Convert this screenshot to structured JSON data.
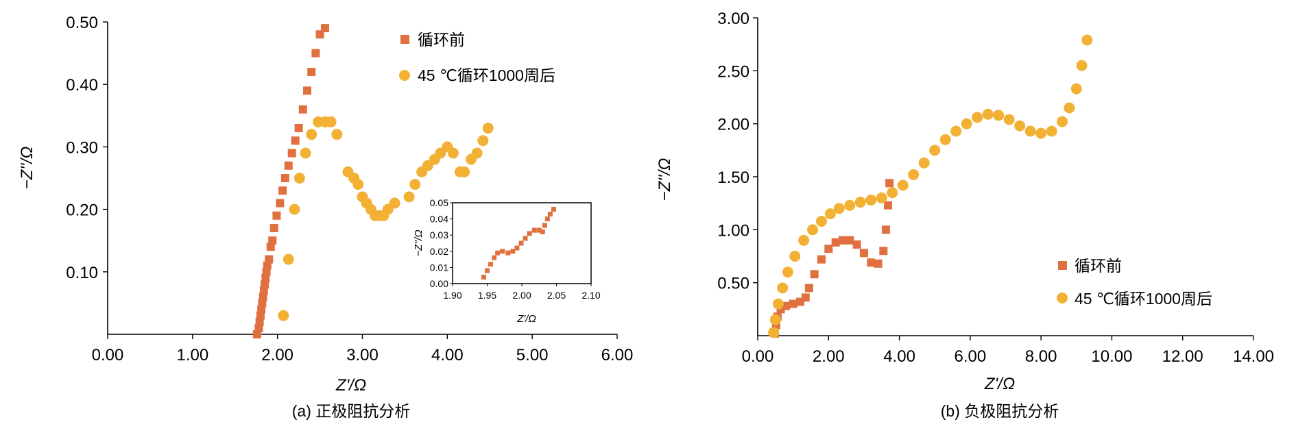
{
  "colors": {
    "before": "#E07040",
    "after": "#F2B134",
    "axis": "#000000"
  },
  "chart_data": [
    {
      "type": "scatter",
      "caption": "(a) 正极阻抗分析",
      "xlabel": "Z'/Ω",
      "ylabel": "−Z''/Ω",
      "xlim": [
        0,
        6
      ],
      "ylim": [
        0,
        0.5
      ],
      "xticks": [
        "0.00",
        "1.00",
        "2.00",
        "3.00",
        "4.00",
        "5.00",
        "6.00"
      ],
      "yticks": [
        "0.10",
        "0.20",
        "0.30",
        "0.40",
        "0.50"
      ],
      "legend_position": "top-right",
      "series": [
        {
          "name": "循环前",
          "marker": "square",
          "color": "#E07040",
          "points": [
            [
              1.76,
              0.0
            ],
            [
              1.78,
              0.01
            ],
            [
              1.79,
              0.02
            ],
            [
              1.8,
              0.03
            ],
            [
              1.81,
              0.04
            ],
            [
              1.82,
              0.05
            ],
            [
              1.83,
              0.06
            ],
            [
              1.84,
              0.07
            ],
            [
              1.85,
              0.08
            ],
            [
              1.86,
              0.09
            ],
            [
              1.87,
              0.1
            ],
            [
              1.88,
              0.11
            ],
            [
              1.9,
              0.12
            ],
            [
              1.92,
              0.14
            ],
            [
              1.94,
              0.15
            ],
            [
              1.96,
              0.17
            ],
            [
              1.99,
              0.19
            ],
            [
              2.03,
              0.21
            ],
            [
              2.06,
              0.23
            ],
            [
              2.09,
              0.25
            ],
            [
              2.13,
              0.27
            ],
            [
              2.17,
              0.29
            ],
            [
              2.21,
              0.31
            ],
            [
              2.25,
              0.33
            ],
            [
              2.3,
              0.36
            ],
            [
              2.35,
              0.39
            ],
            [
              2.4,
              0.42
            ],
            [
              2.45,
              0.45
            ],
            [
              2.5,
              0.48
            ],
            [
              2.56,
              0.49
            ]
          ]
        },
        {
          "name": "45 ℃循环1000周后",
          "marker": "circle",
          "color": "#F2B134",
          "points": [
            [
              2.07,
              0.03
            ],
            [
              2.13,
              0.12
            ],
            [
              2.2,
              0.2
            ],
            [
              2.26,
              0.25
            ],
            [
              2.33,
              0.29
            ],
            [
              2.4,
              0.32
            ],
            [
              2.48,
              0.34
            ],
            [
              2.56,
              0.34
            ],
            [
              2.63,
              0.34
            ],
            [
              2.7,
              0.32
            ],
            [
              2.83,
              0.26
            ],
            [
              2.9,
              0.25
            ],
            [
              2.95,
              0.24
            ],
            [
              3.0,
              0.22
            ],
            [
              3.05,
              0.21
            ],
            [
              3.1,
              0.2
            ],
            [
              3.15,
              0.19
            ],
            [
              3.2,
              0.19
            ],
            [
              3.25,
              0.19
            ],
            [
              3.3,
              0.2
            ],
            [
              3.38,
              0.21
            ],
            [
              3.55,
              0.22
            ],
            [
              3.62,
              0.24
            ],
            [
              3.7,
              0.26
            ],
            [
              3.77,
              0.27
            ],
            [
              3.85,
              0.28
            ],
            [
              3.92,
              0.29
            ],
            [
              4.0,
              0.3
            ],
            [
              4.07,
              0.29
            ],
            [
              4.15,
              0.26
            ],
            [
              4.2,
              0.26
            ],
            [
              4.28,
              0.28
            ],
            [
              4.35,
              0.29
            ],
            [
              4.42,
              0.31
            ],
            [
              4.48,
              0.33
            ]
          ]
        }
      ],
      "inset": {
        "type": "scatter",
        "xlabel": "Z'/Ω",
        "ylabel": "−Z''/Ω",
        "xlim": [
          1.9,
          2.1
        ],
        "ylim": [
          0,
          0.05
        ],
        "xticks": [
          "1.90",
          "1.95",
          "2.00",
          "2.05",
          "2.10"
        ],
        "yticks": [
          "0.00",
          "0.01",
          "0.02",
          "0.03",
          "0.04",
          "0.05"
        ],
        "points": [
          [
            1.945,
            0.004
          ],
          [
            1.95,
            0.008
          ],
          [
            1.955,
            0.012
          ],
          [
            1.96,
            0.016
          ],
          [
            1.965,
            0.019
          ],
          [
            1.972,
            0.02
          ],
          [
            1.98,
            0.019
          ],
          [
            1.987,
            0.02
          ],
          [
            1.993,
            0.022
          ],
          [
            1.999,
            0.025
          ],
          [
            2.005,
            0.028
          ],
          [
            2.011,
            0.031
          ],
          [
            2.018,
            0.033
          ],
          [
            2.025,
            0.033
          ],
          [
            2.03,
            0.032
          ],
          [
            2.033,
            0.036
          ],
          [
            2.037,
            0.04
          ],
          [
            2.041,
            0.043
          ],
          [
            2.046,
            0.046
          ]
        ]
      }
    },
    {
      "type": "scatter",
      "caption": "(b) 负极阻抗分析",
      "xlabel": "Z'/Ω",
      "ylabel": "−Z''/Ω",
      "xlim": [
        0,
        14
      ],
      "ylim": [
        0,
        3
      ],
      "xticks": [
        "0.00",
        "2.00",
        "4.00",
        "6.00",
        "8.00",
        "10.00",
        "12.00",
        "14.00"
      ],
      "yticks": [
        "0.50",
        "1.00",
        "1.50",
        "2.00",
        "2.50",
        "3.00"
      ],
      "legend_position": "bottom-right",
      "series": [
        {
          "name": "循环前",
          "marker": "square",
          "color": "#E07040",
          "points": [
            [
              0.48,
              0.02
            ],
            [
              0.52,
              0.1
            ],
            [
              0.56,
              0.18
            ],
            [
              0.65,
              0.25
            ],
            [
              0.8,
              0.28
            ],
            [
              1.0,
              0.3
            ],
            [
              1.2,
              0.32
            ],
            [
              1.35,
              0.36
            ],
            [
              1.45,
              0.45
            ],
            [
              1.6,
              0.58
            ],
            [
              1.8,
              0.72
            ],
            [
              2.0,
              0.82
            ],
            [
              2.2,
              0.88
            ],
            [
              2.4,
              0.9
            ],
            [
              2.6,
              0.9
            ],
            [
              2.8,
              0.86
            ],
            [
              3.0,
              0.78
            ],
            [
              3.2,
              0.69
            ],
            [
              3.4,
              0.68
            ],
            [
              3.55,
              0.8
            ],
            [
              3.62,
              1.0
            ],
            [
              3.68,
              1.23
            ],
            [
              3.72,
              1.44
            ]
          ]
        },
        {
          "name": "45 ℃循环1000周后",
          "marker": "circle",
          "color": "#F2B134",
          "points": [
            [
              0.45,
              0.03
            ],
            [
              0.5,
              0.15
            ],
            [
              0.58,
              0.3
            ],
            [
              0.7,
              0.45
            ],
            [
              0.85,
              0.6
            ],
            [
              1.05,
              0.75
            ],
            [
              1.3,
              0.9
            ],
            [
              1.55,
              1.0
            ],
            [
              1.8,
              1.08
            ],
            [
              2.05,
              1.15
            ],
            [
              2.3,
              1.2
            ],
            [
              2.6,
              1.23
            ],
            [
              2.9,
              1.26
            ],
            [
              3.2,
              1.28
            ],
            [
              3.5,
              1.3
            ],
            [
              3.8,
              1.35
            ],
            [
              4.1,
              1.42
            ],
            [
              4.4,
              1.52
            ],
            [
              4.7,
              1.63
            ],
            [
              5.0,
              1.75
            ],
            [
              5.3,
              1.85
            ],
            [
              5.6,
              1.93
            ],
            [
              5.9,
              2.0
            ],
            [
              6.2,
              2.06
            ],
            [
              6.5,
              2.09
            ],
            [
              6.8,
              2.08
            ],
            [
              7.1,
              2.04
            ],
            [
              7.4,
              1.98
            ],
            [
              7.7,
              1.93
            ],
            [
              8.0,
              1.91
            ],
            [
              8.3,
              1.93
            ],
            [
              8.6,
              2.02
            ],
            [
              8.8,
              2.15
            ],
            [
              9.0,
              2.33
            ],
            [
              9.15,
              2.55
            ],
            [
              9.3,
              2.79
            ]
          ]
        }
      ]
    }
  ]
}
